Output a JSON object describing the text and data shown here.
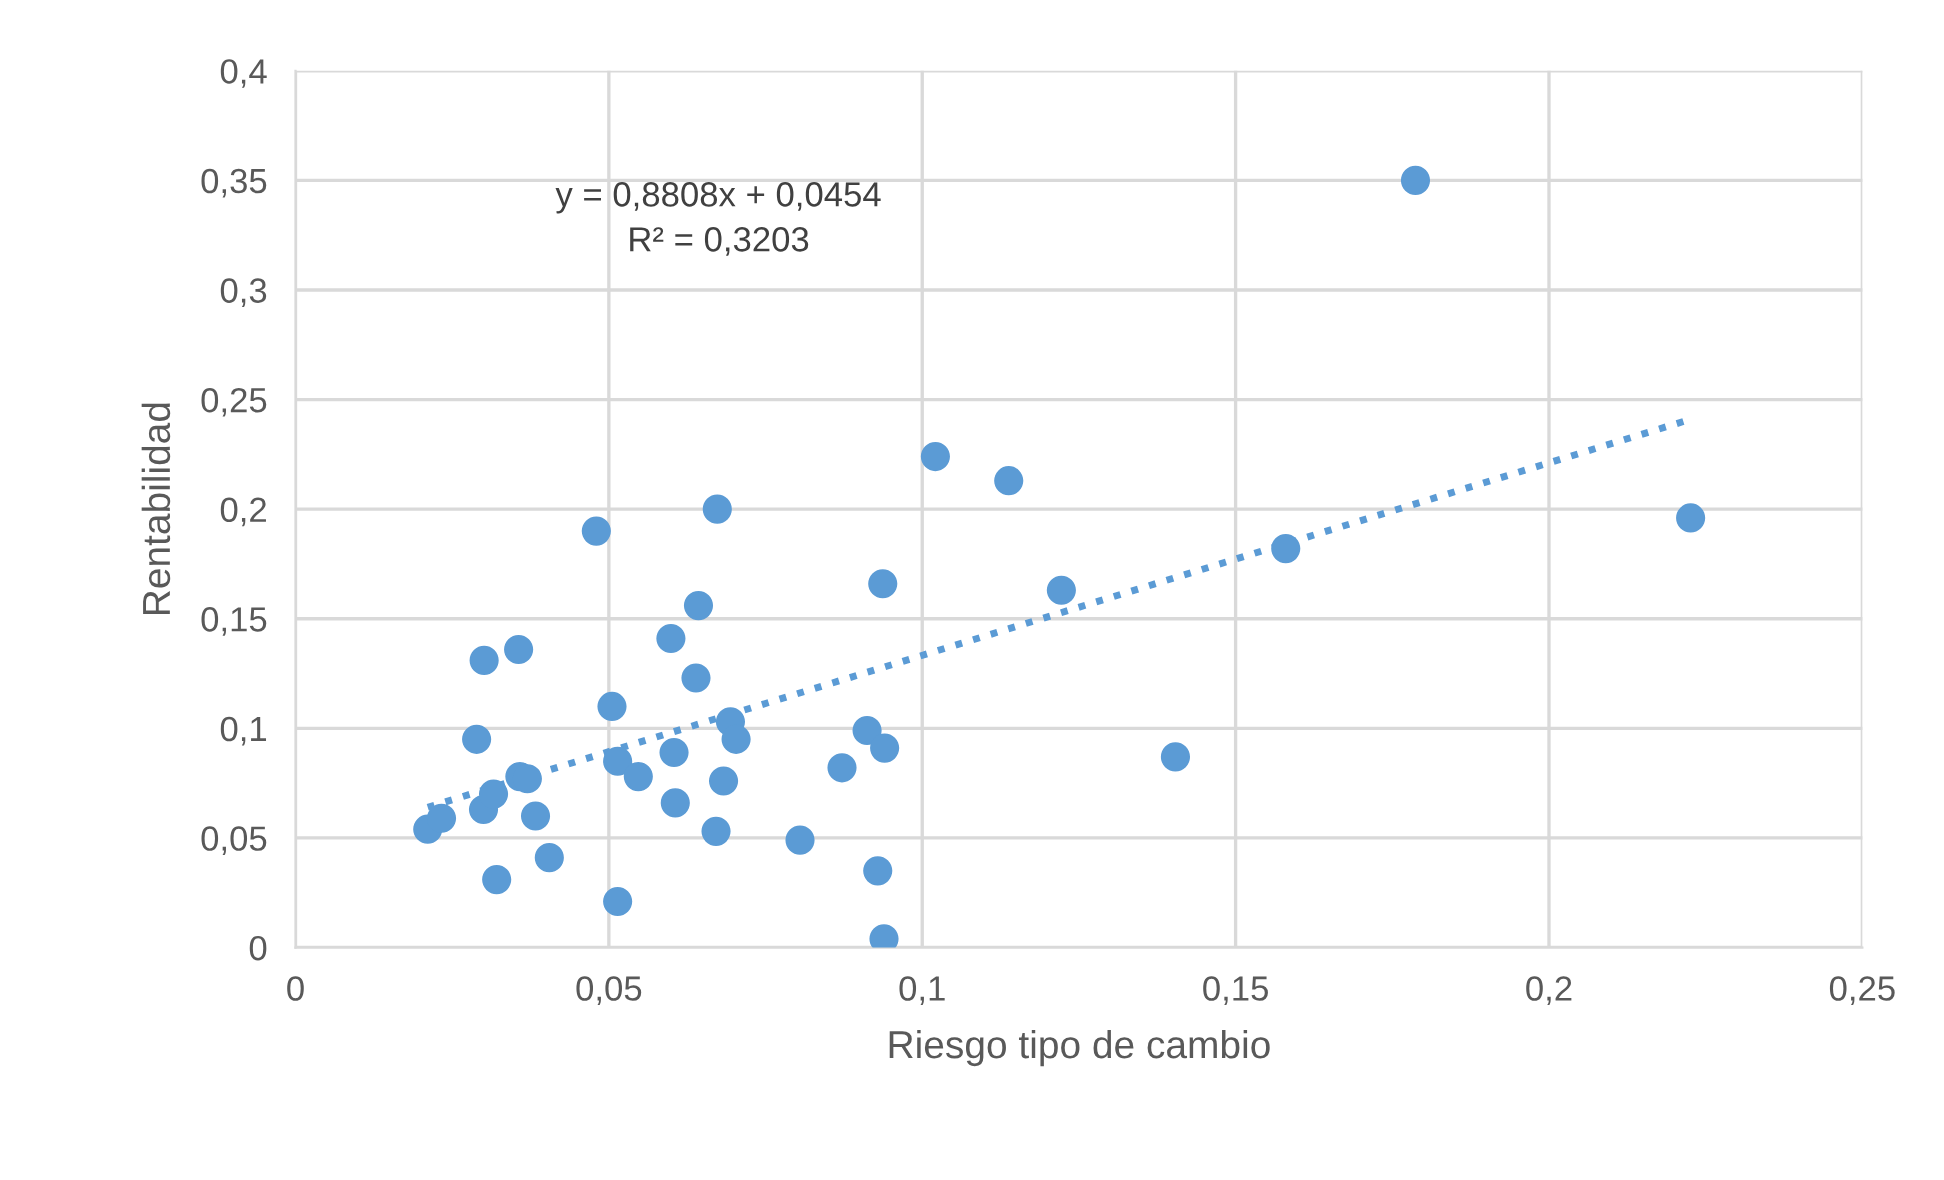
{
  "chart_data": {
    "type": "scatter",
    "xlabel": "Riesgo tipo de cambio",
    "ylabel": "Rentabilidad",
    "xlim": [
      0,
      0.25
    ],
    "ylim": [
      0,
      0.4
    ],
    "xticks": [
      {
        "value": 0,
        "label": "0"
      },
      {
        "value": 0.05,
        "label": "0,05"
      },
      {
        "value": 0.1,
        "label": "0,1"
      },
      {
        "value": 0.15,
        "label": "0,15"
      },
      {
        "value": 0.2,
        "label": "0,2"
      },
      {
        "value": 0.25,
        "label": "0,25"
      }
    ],
    "yticks": [
      {
        "value": 0,
        "label": "0"
      },
      {
        "value": 0.05,
        "label": "0,05"
      },
      {
        "value": 0.1,
        "label": "0,1"
      },
      {
        "value": 0.15,
        "label": "0,15"
      },
      {
        "value": 0.2,
        "label": "0,2"
      },
      {
        "value": 0.25,
        "label": "0,25"
      },
      {
        "value": 0.3,
        "label": "0,3"
      },
      {
        "value": 0.35,
        "label": "0,35"
      },
      {
        "value": 0.4,
        "label": "0,4"
      }
    ],
    "grid": true,
    "marker": "circle",
    "annotations": [
      "y = 0,8808x + 0,0454\nR² = 0,3203"
    ],
    "series": [
      {
        "color": "#5b9bd5",
        "x": [
          0.0211,
          0.0233,
          0.0301,
          0.0356,
          0.0289,
          0.03,
          0.0316,
          0.0358,
          0.037,
          0.0383,
          0.0321,
          0.0405,
          0.048,
          0.0505,
          0.0514,
          0.0547,
          0.0514,
          0.0599,
          0.0604,
          0.0606,
          0.0643,
          0.0639,
          0.0673,
          0.0671,
          0.0683,
          0.0694,
          0.0703,
          0.0805,
          0.0872,
          0.0912,
          0.094,
          0.0937,
          0.0929,
          0.0939,
          0.1021,
          0.1138,
          0.1222,
          0.1404,
          0.158,
          0.1787,
          0.2226
        ],
        "values": [
          0.054,
          0.059,
          0.131,
          0.136,
          0.095,
          0.063,
          0.07,
          0.078,
          0.077,
          0.06,
          0.031,
          0.041,
          0.19,
          0.11,
          0.085,
          0.078,
          0.021,
          0.141,
          0.089,
          0.066,
          0.156,
          0.123,
          0.2,
          0.053,
          0.076,
          0.103,
          0.095,
          0.049,
          0.082,
          0.099,
          0.091,
          0.166,
          0.035,
          0.004,
          0.224,
          0.213,
          0.163,
          0.087,
          0.182,
          0.35,
          0.196
        ]
      },
      {
        "type": "line",
        "color": "#5b9bd5",
        "line_style": "dotted",
        "marker": "none",
        "x": [
          0.0211,
          0.2226
        ],
        "values": [
          0.064,
          0.241
        ]
      }
    ]
  }
}
